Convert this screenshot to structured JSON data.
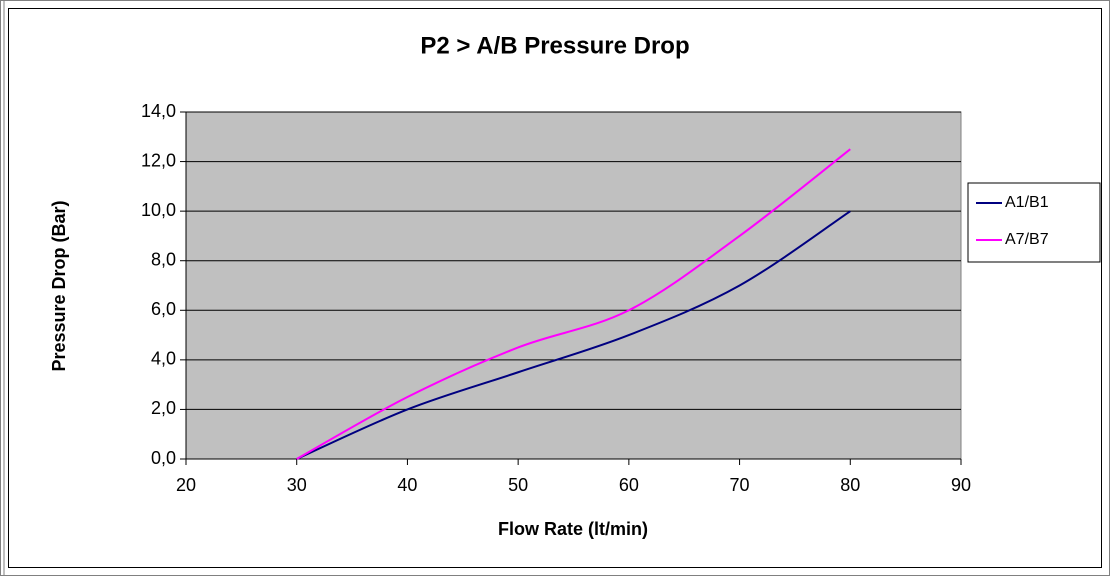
{
  "chart_data": {
    "type": "line",
    "title": "P2 > A/B Pressure Drop",
    "x_label": "Flow Rate (lt/min)",
    "y_label": "Pressure Drop (Bar)",
    "x": [
      30,
      40,
      50,
      60,
      70,
      80
    ],
    "series": [
      {
        "name": "A1/B1",
        "color": "#000080",
        "values": [
          0,
          2,
          3.5,
          5,
          7,
          10
        ]
      },
      {
        "name": "A7/B7",
        "color": "#ff00ff",
        "values": [
          0,
          2.5,
          4.5,
          6,
          9,
          12.5
        ]
      }
    ],
    "xlim": [
      20,
      90
    ],
    "xticks": [
      20,
      30,
      40,
      50,
      60,
      70,
      80,
      90
    ],
    "ylim": [
      0,
      14
    ],
    "yticks": [
      {
        "value": 0,
        "label": "0,0"
      },
      {
        "value": 2,
        "label": "2,0"
      },
      {
        "value": 4,
        "label": "4,0"
      },
      {
        "value": 6,
        "label": "6,0"
      },
      {
        "value": 8,
        "label": "8,0"
      },
      {
        "value": 10,
        "label": "10,0"
      },
      {
        "value": 12,
        "label": "12,0"
      },
      {
        "value": 14,
        "label": "14,0"
      }
    ],
    "grid": true,
    "smooth": true,
    "legend": "right",
    "plot_background": "#c0c0c0"
  }
}
